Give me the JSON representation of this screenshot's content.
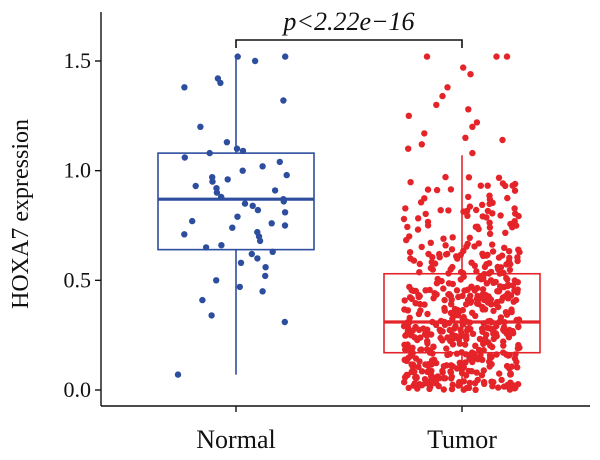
{
  "chart_data": {
    "type": "boxplot",
    "title": "",
    "xlabel": "",
    "ylabel": "HOXA7 expression",
    "ylim": [
      -0.05,
      1.65
    ],
    "yticks": [
      0.0,
      0.5,
      1.0,
      1.5
    ],
    "ytick_labels": [
      "0.0",
      "0.5",
      "1.0",
      "1.5"
    ],
    "categories": [
      "Normal",
      "Tumor"
    ],
    "series": [
      {
        "category": "Normal",
        "color": "#2D4E9E",
        "min": 0.07,
        "q1": 0.64,
        "median": 0.87,
        "q3": 1.08,
        "max": 1.52,
        "points": [
          0.07,
          0.31,
          0.34,
          0.41,
          0.45,
          0.47,
          0.5,
          0.52,
          0.56,
          0.58,
          0.6,
          0.62,
          0.63,
          0.65,
          0.66,
          0.68,
          0.7,
          0.71,
          0.72,
          0.74,
          0.75,
          0.76,
          0.77,
          0.79,
          0.81,
          0.82,
          0.84,
          0.85,
          0.86,
          0.87,
          0.88,
          0.9,
          0.91,
          0.92,
          0.93,
          0.95,
          0.96,
          0.97,
          0.98,
          1.0,
          1.02,
          1.04,
          1.06,
          1.08,
          1.09,
          1.1,
          1.13,
          1.2,
          1.32,
          1.38,
          1.4,
          1.42,
          1.5,
          1.52,
          1.52
        ]
      },
      {
        "category": "Tumor",
        "color": "#E5242A",
        "min": 0.0,
        "q1": 0.17,
        "median": 0.31,
        "q3": 0.53,
        "max": 1.07,
        "outliers": [
          1.08,
          1.1,
          1.12,
          1.14,
          1.15,
          1.17,
          1.2,
          1.22,
          1.25,
          1.28,
          1.3,
          1.34,
          1.38,
          1.44,
          1.47,
          1.52,
          1.52,
          1.52
        ]
      }
    ],
    "annotation": "p<2.22e−16"
  }
}
